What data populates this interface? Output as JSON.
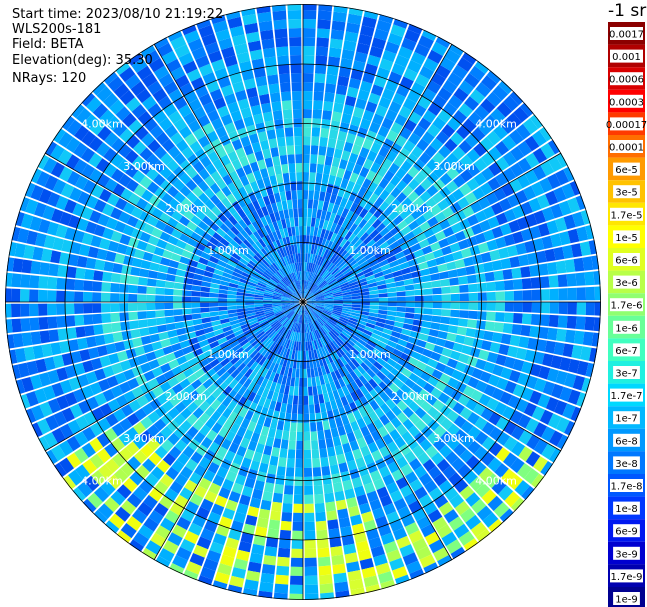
{
  "header": {
    "start_time": "Start time: 2023/08/10 21:19:22",
    "instrument": "WLS200s-181",
    "field": "Field: BETA",
    "elevation": "Elevation(deg): 35.30",
    "nrays": "NRays: 120"
  },
  "chart_data": {
    "type": "heatmap",
    "projection": "polar (PPI scan)",
    "field": "BETA",
    "nrays": 120,
    "elevation_deg": 35.3,
    "range_rings_km": [
      1.0,
      2.0,
      3.0,
      4.0
    ],
    "range_ring_labels": [
      "1.00km",
      "2.00km",
      "3.00km",
      "4.00km"
    ],
    "spoke_angles_deg": [
      0,
      30,
      60,
      90,
      120,
      150,
      180,
      210,
      240,
      270,
      300,
      330
    ],
    "colorbar": {
      "unit_label": "-1 sr",
      "ticks": [
        "0.0017",
        "0.001",
        "0.0006",
        "0.0003",
        "0.00017",
        "0.0001",
        "6e-5",
        "3e-5",
        "1.7e-5",
        "1e-5",
        "6e-6",
        "3e-6",
        "1.7e-6",
        "1e-6",
        "6e-7",
        "3e-7",
        "1.7e-7",
        "1e-7",
        "6e-8",
        "3e-8",
        "1.7e-8",
        "1e-8",
        "6e-9",
        "3e-9",
        "1.7e-9",
        "1e-9"
      ],
      "colors": [
        "#8b0000",
        "#b00000",
        "#d80000",
        "#ff0000",
        "#ff3a00",
        "#ff6e00",
        "#ff9a00",
        "#ffc200",
        "#ffe600",
        "#ffff00",
        "#e0ff20",
        "#b8ff48",
        "#90ff70",
        "#68ff98",
        "#40ffc0",
        "#20f0e0",
        "#00d8ff",
        "#00b8ff",
        "#0098ff",
        "#0078ff",
        "#0058ff",
        "#0038ff",
        "#0018f0",
        "#0000d0",
        "#0000b0",
        "#000090"
      ]
    }
  }
}
